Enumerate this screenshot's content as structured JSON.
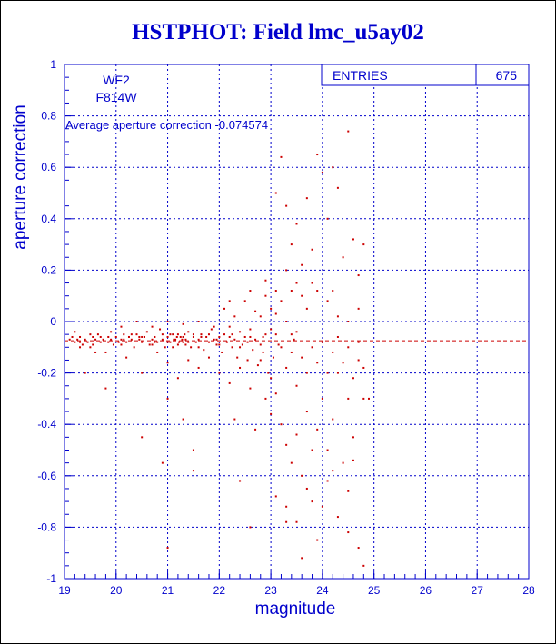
{
  "title": "HSTPHOT: Field lmc_u5ay02",
  "colors": {
    "axis": "#0000cc",
    "points": "#cc0000",
    "title": "#0000cc",
    "grid": "#0000cc"
  },
  "info": {
    "line1": "WF2",
    "line2": "F814W",
    "avg_label": "Average aperture correction -0.074574"
  },
  "stats": {
    "entries_label": "ENTRIES",
    "entries_value": "675"
  },
  "chart_data": {
    "type": "scatter",
    "title": "HSTPHOT: Field lmc_u5ay02",
    "xlabel": "magnitude",
    "ylabel": "aperture correction",
    "xlim": [
      19,
      28
    ],
    "ylim": [
      -1,
      1
    ],
    "xticks": [
      "19",
      "20",
      "21",
      "22",
      "23",
      "24",
      "25",
      "26",
      "27",
      "28"
    ],
    "yticks": [
      "-1",
      "-0.8",
      "-0.6",
      "-0.4",
      "-0.2",
      "0",
      "0.2",
      "0.4",
      "0.6",
      "0.8",
      "1"
    ],
    "grid": true,
    "reference_line": {
      "y": -0.074574,
      "style": "dashed"
    },
    "entries": 675,
    "points": [
      [
        19.1,
        -0.07
      ],
      [
        19.15,
        -0.06
      ],
      [
        19.2,
        -0.08
      ],
      [
        19.25,
        -0.07
      ],
      [
        19.3,
        -0.06
      ],
      [
        19.35,
        -0.09
      ],
      [
        19.4,
        -0.07
      ],
      [
        19.45,
        -0.08
      ],
      [
        19.5,
        -0.1
      ],
      [
        19.55,
        -0.06
      ],
      [
        19.6,
        -0.07
      ],
      [
        19.65,
        -0.05
      ],
      [
        19.7,
        -0.08
      ],
      [
        19.75,
        -0.07
      ],
      [
        19.8,
        -0.12
      ],
      [
        19.85,
        -0.06
      ],
      [
        19.9,
        -0.07
      ],
      [
        19.95,
        -0.09
      ],
      [
        20.0,
        -0.06
      ],
      [
        20.05,
        -0.08
      ],
      [
        20.1,
        -0.07
      ],
      [
        20.15,
        -0.05
      ],
      [
        20.2,
        -0.08
      ],
      [
        20.25,
        -0.06
      ],
      [
        20.3,
        -0.07
      ],
      [
        20.35,
        -0.1
      ],
      [
        20.4,
        -0.05
      ],
      [
        20.45,
        -0.07
      ],
      [
        20.5,
        -0.08
      ],
      [
        20.55,
        -0.06
      ],
      [
        20.6,
        -0.04
      ],
      [
        20.65,
        -0.09
      ],
      [
        20.7,
        -0.07
      ],
      [
        20.75,
        -0.06
      ],
      [
        20.8,
        -0.08
      ],
      [
        20.85,
        -0.03
      ],
      [
        20.9,
        -0.07
      ],
      [
        20.95,
        -0.1
      ],
      [
        21.0,
        -0.06
      ],
      [
        21.05,
        -0.08
      ],
      [
        21.1,
        -0.05
      ],
      [
        21.15,
        -0.07
      ],
      [
        21.2,
        -0.09
      ],
      [
        21.25,
        -0.06
      ],
      [
        21.3,
        -0.08
      ],
      [
        21.35,
        -0.07
      ],
      [
        21.4,
        -0.04
      ],
      [
        21.45,
        -0.1
      ],
      [
        21.5,
        -0.06
      ],
      [
        21.55,
        -0.08
      ],
      [
        21.6,
        -0.07
      ],
      [
        21.65,
        -0.05
      ],
      [
        21.7,
        -0.11
      ],
      [
        21.75,
        -0.06
      ],
      [
        21.8,
        -0.08
      ],
      [
        21.85,
        -0.03
      ],
      [
        21.9,
        -0.07
      ],
      [
        21.95,
        -0.09
      ],
      [
        22.0,
        -0.06
      ],
      [
        22.05,
        -0.12
      ],
      [
        22.1,
        -0.05
      ],
      [
        22.15,
        -0.08
      ],
      [
        22.2,
        -0.02
      ],
      [
        22.25,
        -0.1
      ],
      [
        22.3,
        -0.07
      ],
      [
        22.35,
        -0.14
      ],
      [
        22.4,
        -0.04
      ],
      [
        22.45,
        -0.09
      ],
      [
        22.5,
        -0.06
      ],
      [
        22.55,
        -0.15
      ],
      [
        22.6,
        -0.03
      ],
      [
        22.65,
        -0.11
      ],
      [
        22.7,
        -0.07
      ],
      [
        22.75,
        -0.17
      ],
      [
        22.8,
        0.02
      ],
      [
        22.85,
        -0.12
      ],
      [
        22.9,
        -0.05
      ],
      [
        22.95,
        -0.2
      ],
      [
        23.0,
        0.05
      ],
      [
        23.05,
        -0.14
      ],
      [
        19.2,
        -0.04
      ],
      [
        19.3,
        -0.1
      ],
      [
        19.5,
        -0.05
      ],
      [
        19.7,
        -0.06
      ],
      [
        19.9,
        -0.04
      ],
      [
        20.1,
        -0.09
      ],
      [
        20.3,
        -0.05
      ],
      [
        20.5,
        -0.06
      ],
      [
        20.7,
        -0.09
      ],
      [
        20.9,
        -0.05
      ],
      [
        21.0,
        -0.08
      ],
      [
        21.1,
        -0.1
      ],
      [
        21.2,
        -0.05
      ],
      [
        21.3,
        -0.06
      ],
      [
        21.4,
        -0.08
      ],
      [
        21.5,
        -0.05
      ],
      [
        21.6,
        -0.1
      ],
      [
        21.8,
        -0.05
      ],
      [
        22.0,
        -0.09
      ],
      [
        22.2,
        -0.06
      ],
      [
        22.4,
        -0.1
      ],
      [
        22.6,
        -0.06
      ],
      [
        22.8,
        -0.09
      ],
      [
        23.0,
        -0.03
      ],
      [
        19.4,
        -0.2
      ],
      [
        19.6,
        -0.12
      ],
      [
        19.8,
        -0.26
      ],
      [
        20.2,
        -0.14
      ],
      [
        20.5,
        -0.2
      ],
      [
        20.8,
        -0.12
      ],
      [
        21.0,
        -0.16
      ],
      [
        21.2,
        -0.22
      ],
      [
        21.4,
        -0.15
      ],
      [
        21.6,
        -0.18
      ],
      [
        21.8,
        -0.14
      ],
      [
        22.0,
        -0.2
      ],
      [
        22.2,
        -0.24
      ],
      [
        22.4,
        -0.18
      ],
      [
        22.6,
        -0.26
      ],
      [
        22.8,
        -0.15
      ],
      [
        20.1,
        -0.02
      ],
      [
        20.4,
        0.0
      ],
      [
        20.7,
        -0.02
      ],
      [
        21.0,
        0.0
      ],
      [
        21.3,
        -0.01
      ],
      [
        21.6,
        0.0
      ],
      [
        21.9,
        -0.02
      ],
      [
        22.1,
        0.05
      ],
      [
        22.3,
        0.02
      ],
      [
        22.5,
        0.08
      ],
      [
        22.7,
        0.04
      ],
      [
        22.9,
        0.1
      ],
      [
        23.1,
        0.03
      ],
      [
        22.2,
        0.08
      ],
      [
        22.6,
        0.12
      ],
      [
        22.9,
        0.16
      ],
      [
        23.1,
        0.12
      ],
      [
        23.2,
        0.08
      ],
      [
        23.3,
        0.0
      ],
      [
        23.4,
        -0.05
      ],
      [
        20.5,
        -0.45
      ],
      [
        20.9,
        -0.55
      ],
      [
        21.0,
        -0.3
      ],
      [
        21.3,
        -0.38
      ],
      [
        21.5,
        -0.5
      ],
      [
        21.5,
        -0.58
      ],
      [
        22.3,
        -0.38
      ],
      [
        22.4,
        -0.62
      ],
      [
        22.7,
        -0.42
      ],
      [
        22.9,
        -0.3
      ],
      [
        23.0,
        -0.22
      ],
      [
        23.0,
        -0.36
      ],
      [
        23.1,
        -0.28
      ],
      [
        23.2,
        -0.4
      ],
      [
        23.3,
        -0.48
      ],
      [
        23.4,
        -0.55
      ],
      [
        23.5,
        -0.44
      ],
      [
        23.6,
        -0.6
      ],
      [
        23.7,
        -0.35
      ],
      [
        23.8,
        -0.5
      ],
      [
        23.9,
        -0.42
      ],
      [
        24.0,
        -0.3
      ],
      [
        24.1,
        -0.5
      ],
      [
        24.2,
        -0.38
      ],
      [
        24.3,
        -0.2
      ],
      [
        24.4,
        -0.55
      ],
      [
        24.5,
        -0.3
      ],
      [
        24.6,
        -0.45
      ],
      [
        24.7,
        -0.15
      ],
      [
        24.8,
        -0.3
      ],
      [
        23.1,
        -0.68
      ],
      [
        23.3,
        -0.72
      ],
      [
        23.5,
        -0.78
      ],
      [
        23.8,
        -0.7
      ],
      [
        23.9,
        -0.85
      ],
      [
        24.1,
        -0.62
      ],
      [
        24.3,
        -0.76
      ],
      [
        24.5,
        -0.82
      ],
      [
        24.7,
        -0.88
      ],
      [
        24.8,
        -0.95
      ],
      [
        21.0,
        -0.88
      ],
      [
        22.4,
        -0.62
      ],
      [
        22.6,
        -0.8
      ],
      [
        23.3,
        -0.78
      ],
      [
        23.6,
        -0.92
      ],
      [
        24.0,
        -0.72
      ],
      [
        24.5,
        -0.66
      ],
      [
        24.6,
        -0.54
      ],
      [
        24.2,
        -0.58
      ],
      [
        23.7,
        -0.65
      ],
      [
        23.1,
        0.5
      ],
      [
        23.2,
        0.64
      ],
      [
        23.3,
        0.45
      ],
      [
        23.4,
        0.3
      ],
      [
        23.5,
        0.38
      ],
      [
        23.6,
        0.22
      ],
      [
        23.7,
        0.48
      ],
      [
        23.8,
        0.15
      ],
      [
        23.9,
        0.65
      ],
      [
        24.0,
        0.58
      ],
      [
        24.1,
        0.4
      ],
      [
        24.2,
        0.6
      ],
      [
        24.3,
        0.52
      ],
      [
        24.4,
        0.25
      ],
      [
        24.5,
        0.74
      ],
      [
        24.6,
        0.32
      ],
      [
        24.7,
        0.18
      ],
      [
        24.8,
        0.3
      ],
      [
        24.2,
        0.12
      ],
      [
        23.6,
        0.1
      ],
      [
        23.3,
        0.2
      ],
      [
        23.5,
        0.15
      ],
      [
        23.7,
        0.05
      ],
      [
        23.9,
        0.12
      ],
      [
        24.1,
        0.08
      ],
      [
        24.3,
        0.02
      ],
      [
        24.5,
        0.0
      ],
      [
        24.7,
        0.05
      ],
      [
        23.4,
        0.12
      ],
      [
        23.8,
        0.28
      ],
      [
        23.2,
        -0.1
      ],
      [
        23.3,
        -0.18
      ],
      [
        23.4,
        -0.12
      ],
      [
        23.5,
        -0.25
      ],
      [
        23.6,
        -0.14
      ],
      [
        23.7,
        -0.2
      ],
      [
        23.8,
        -0.1
      ],
      [
        23.9,
        -0.16
      ],
      [
        24.0,
        -0.08
      ],
      [
        24.1,
        -0.2
      ],
      [
        24.2,
        -0.12
      ],
      [
        24.3,
        -0.06
      ],
      [
        24.4,
        -0.16
      ],
      [
        24.5,
        -0.1
      ],
      [
        24.6,
        -0.22
      ],
      [
        24.7,
        -0.08
      ],
      [
        24.8,
        -0.18
      ],
      [
        24.9,
        -0.3
      ],
      [
        23.1,
        -0.05
      ],
      [
        23.5,
        -0.04
      ],
      [
        19.3,
        -0.08
      ],
      [
        19.55,
        -0.09
      ],
      [
        19.85,
        -0.08
      ],
      [
        20.15,
        -0.07
      ],
      [
        20.45,
        -0.06
      ],
      [
        20.75,
        -0.08
      ],
      [
        21.05,
        -0.05
      ],
      [
        21.35,
        -0.09
      ],
      [
        21.65,
        -0.06
      ],
      [
        21.95,
        -0.07
      ],
      [
        22.25,
        -0.05
      ],
      [
        22.55,
        -0.08
      ],
      [
        22.85,
        -0.06
      ],
      [
        23.15,
        -0.09
      ],
      [
        23.45,
        -0.07
      ],
      [
        21.12,
        -0.07
      ],
      [
        21.18,
        -0.06
      ],
      [
        21.22,
        -0.08
      ],
      [
        21.28,
        -0.07
      ],
      [
        21.33,
        -0.05
      ]
    ]
  }
}
